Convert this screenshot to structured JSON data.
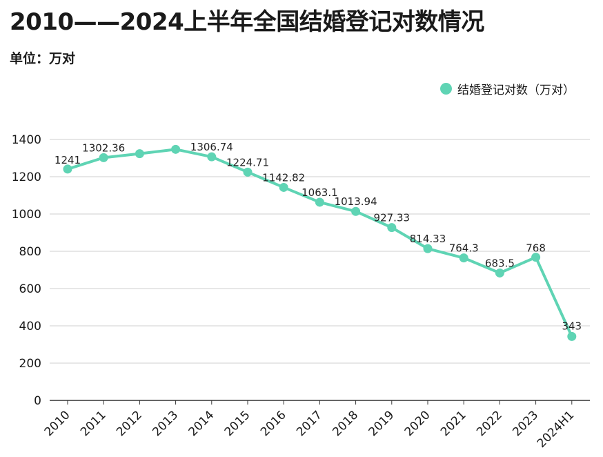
{
  "chart_data": {
    "type": "line",
    "title": "2010——2024上半年全国结婚登记对数情况",
    "unit_label": "单位：万对",
    "categories": [
      "2010",
      "2011",
      "2012",
      "2013",
      "2014",
      "2015",
      "2016",
      "2017",
      "2018",
      "2019",
      "2020",
      "2021",
      "2022",
      "2023",
      "2024H1"
    ],
    "series": [
      {
        "name": "结婚登记对数（万对）",
        "values": [
          1241,
          1302.36,
          1323.6,
          1346.9,
          1306.74,
          1224.71,
          1142.82,
          1063.1,
          1013.94,
          927.33,
          814.33,
          764.3,
          683.5,
          768,
          343
        ],
        "data_labels": [
          "1241",
          "1302.36",
          "",
          "",
          "1306.74",
          "1224.71",
          "1142.82",
          "1063.1",
          "1013.94",
          "927.33",
          "814.33",
          "764.3",
          "683.5",
          "768",
          "343"
        ],
        "color": "#5fd4b4"
      }
    ],
    "y_ticks": [
      "0",
      "200",
      "400",
      "600",
      "800",
      "1000",
      "1200",
      "1400"
    ],
    "ylim": [
      0,
      1400
    ],
    "grid": true,
    "legend_position": "top-right"
  }
}
